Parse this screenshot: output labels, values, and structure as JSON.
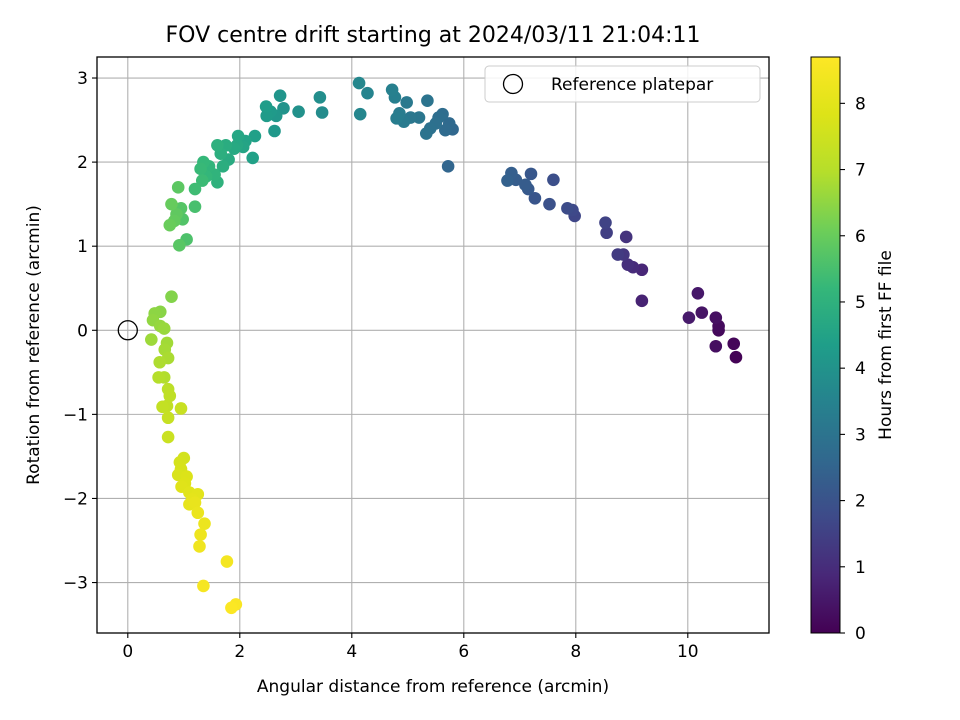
{
  "chart_data": {
    "type": "scatter",
    "title": "FOV centre drift starting at 2024/03/11 21:04:11",
    "xlabel": "Angular distance from reference (arcmin)",
    "ylabel": "Rotation from reference (arcmin)",
    "xlim": [
      -0.55,
      11.45
    ],
    "ylim": [
      -3.6,
      3.25
    ],
    "xticks": [
      0,
      2,
      4,
      6,
      8,
      10
    ],
    "yticks": [
      -3,
      -2,
      -1,
      0,
      1,
      2,
      3
    ],
    "grid": true,
    "legend": {
      "position": "top-right",
      "entries": [
        "Reference platepar"
      ]
    },
    "reference_point": {
      "x": 0,
      "y": 0
    },
    "colorbar": {
      "label": "Hours from first FF file",
      "range": [
        0,
        8.7
      ],
      "ticks": [
        0,
        1,
        2,
        3,
        4,
        5,
        6,
        7,
        8
      ],
      "colormap": "viridis"
    },
    "points": [
      [
        10.86,
        -0.32,
        0.05
      ],
      [
        10.82,
        -0.16,
        0.12
      ],
      [
        10.55,
        0.0,
        0.18
      ],
      [
        10.55,
        0.05,
        0.22
      ],
      [
        10.5,
        -0.19,
        0.28
      ],
      [
        10.5,
        0.15,
        0.34
      ],
      [
        10.25,
        0.21,
        0.42
      ],
      [
        10.18,
        0.44,
        0.5
      ],
      [
        10.02,
        0.15,
        0.56
      ],
      [
        9.18,
        0.35,
        0.75
      ],
      [
        9.18,
        0.72,
        0.85
      ],
      [
        9.02,
        0.75,
        0.95
      ],
      [
        8.93,
        0.78,
        1.05
      ],
      [
        8.9,
        1.11,
        1.15
      ],
      [
        8.85,
        0.9,
        1.25
      ],
      [
        8.75,
        0.9,
        1.35
      ],
      [
        8.55,
        1.16,
        1.45
      ],
      [
        8.53,
        1.28,
        1.55
      ],
      [
        7.98,
        1.36,
        1.65
      ],
      [
        7.94,
        1.43,
        1.72
      ],
      [
        7.85,
        1.45,
        1.8
      ],
      [
        7.6,
        1.79,
        1.88
      ],
      [
        7.53,
        1.5,
        1.95
      ],
      [
        7.27,
        1.57,
        2.05
      ],
      [
        7.2,
        1.86,
        2.12
      ],
      [
        7.15,
        1.68,
        2.18
      ],
      [
        7.1,
        1.73,
        2.25
      ],
      [
        6.93,
        1.79,
        2.3
      ],
      [
        6.85,
        1.87,
        2.35
      ],
      [
        6.78,
        1.78,
        2.4
      ],
      [
        5.72,
        1.95,
        2.55
      ],
      [
        5.8,
        2.39,
        2.62
      ],
      [
        5.74,
        2.46,
        2.68
      ],
      [
        5.67,
        2.38,
        2.72
      ],
      [
        5.62,
        2.57,
        2.77
      ],
      [
        5.55,
        2.53,
        2.82
      ],
      [
        5.5,
        2.46,
        2.87
      ],
      [
        5.4,
        2.4,
        2.92
      ],
      [
        5.33,
        2.34,
        2.97
      ],
      [
        5.35,
        2.73,
        3.02
      ],
      [
        5.2,
        2.53,
        3.07
      ],
      [
        5.05,
        2.53,
        3.12
      ],
      [
        4.98,
        2.71,
        3.18
      ],
      [
        4.93,
        2.48,
        3.22
      ],
      [
        4.85,
        2.58,
        3.27
      ],
      [
        4.8,
        2.52,
        3.32
      ],
      [
        4.77,
        2.77,
        3.37
      ],
      [
        4.72,
        2.86,
        3.42
      ],
      [
        4.28,
        2.82,
        3.55
      ],
      [
        4.15,
        2.57,
        3.6
      ],
      [
        4.13,
        2.94,
        3.65
      ],
      [
        3.47,
        2.59,
        3.78
      ],
      [
        3.43,
        2.77,
        3.85
      ],
      [
        3.05,
        2.6,
        3.95
      ],
      [
        2.78,
        2.64,
        4.02
      ],
      [
        2.72,
        2.79,
        4.08
      ],
      [
        2.65,
        2.55,
        4.12
      ],
      [
        2.62,
        2.37,
        4.17
      ],
      [
        2.55,
        2.6,
        4.22
      ],
      [
        2.48,
        2.55,
        4.27
      ],
      [
        2.47,
        2.66,
        4.32
      ],
      [
        2.27,
        2.31,
        4.42
      ],
      [
        2.23,
        2.05,
        4.47
      ],
      [
        2.1,
        2.25,
        4.52
      ],
      [
        2.06,
        2.18,
        4.57
      ],
      [
        1.97,
        2.31,
        4.62
      ],
      [
        1.95,
        2.2,
        4.67
      ],
      [
        1.9,
        2.16,
        4.72
      ],
      [
        1.8,
        2.03,
        4.77
      ],
      [
        1.75,
        2.2,
        4.82
      ],
      [
        1.7,
        1.95,
        4.87
      ],
      [
        1.66,
        2.1,
        4.92
      ],
      [
        1.6,
        2.2,
        4.97
      ],
      [
        1.6,
        1.76,
        5.02
      ],
      [
        1.55,
        1.85,
        5.07
      ],
      [
        1.45,
        1.95,
        5.12
      ],
      [
        1.4,
        1.83,
        5.17
      ],
      [
        1.35,
        2.0,
        5.22
      ],
      [
        1.3,
        1.92,
        5.27
      ],
      [
        1.33,
        1.78,
        5.32
      ],
      [
        1.2,
        1.68,
        5.37
      ],
      [
        1.2,
        1.47,
        5.52
      ],
      [
        1.05,
        1.08,
        5.6
      ],
      [
        0.98,
        1.32,
        5.67
      ],
      [
        0.95,
        1.45,
        5.72
      ],
      [
        0.92,
        1.01,
        5.77
      ],
      [
        0.9,
        1.7,
        5.82
      ],
      [
        0.87,
        1.38,
        5.87
      ],
      [
        0.83,
        1.3,
        5.92
      ],
      [
        0.78,
        1.5,
        5.97
      ],
      [
        0.75,
        1.25,
        6.02
      ],
      [
        0.78,
        0.4,
        6.35
      ],
      [
        0.58,
        0.22,
        6.42
      ],
      [
        0.48,
        0.2,
        6.47
      ],
      [
        0.45,
        0.12,
        6.52
      ],
      [
        0.58,
        0.05,
        6.57
      ],
      [
        0.65,
        0.02,
        6.62
      ],
      [
        0.42,
        -0.11,
        6.67
      ],
      [
        0.7,
        -0.15,
        6.72
      ],
      [
        0.66,
        -0.23,
        6.77
      ],
      [
        0.72,
        -0.33,
        6.82
      ],
      [
        0.57,
        -0.38,
        6.87
      ],
      [
        0.65,
        -0.56,
        6.92
      ],
      [
        0.55,
        -0.56,
        6.97
      ],
      [
        0.72,
        -0.7,
        7.12
      ],
      [
        0.75,
        -0.78,
        7.17
      ],
      [
        0.7,
        -0.9,
        7.22
      ],
      [
        0.62,
        -0.91,
        7.27
      ],
      [
        0.72,
        -1.04,
        7.32
      ],
      [
        0.95,
        -0.93,
        7.37
      ],
      [
        0.72,
        -1.27,
        7.42
      ],
      [
        1.0,
        -1.52,
        7.6
      ],
      [
        0.93,
        -1.57,
        7.65
      ],
      [
        0.95,
        -1.65,
        7.7
      ],
      [
        0.9,
        -1.72,
        7.75
      ],
      [
        1.05,
        -1.74,
        7.8
      ],
      [
        1.02,
        -1.82,
        7.85
      ],
      [
        0.96,
        -1.86,
        7.9
      ],
      [
        1.1,
        -1.93,
        7.95
      ],
      [
        1.25,
        -1.95,
        8.0
      ],
      [
        1.15,
        -2.01,
        8.05
      ],
      [
        1.1,
        -2.07,
        8.1
      ],
      [
        1.2,
        -2.05,
        8.15
      ],
      [
        1.25,
        -2.17,
        8.2
      ],
      [
        1.37,
        -2.3,
        8.25
      ],
      [
        1.3,
        -2.43,
        8.3
      ],
      [
        1.28,
        -2.57,
        8.35
      ],
      [
        1.77,
        -2.75,
        8.45
      ],
      [
        1.35,
        -3.04,
        8.5
      ],
      [
        1.93,
        -3.26,
        8.58
      ],
      [
        1.85,
        -3.3,
        8.64
      ]
    ]
  }
}
